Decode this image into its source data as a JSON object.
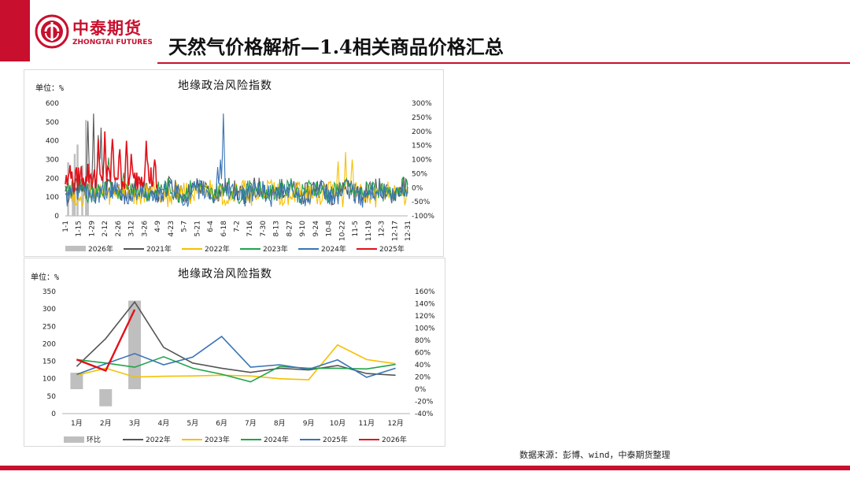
{
  "header": {
    "logo_cn": "中泰期货",
    "logo_en": "ZHONGTAI FUTURES",
    "title": "天然气价格解析—1.4相关商品价格汇总"
  },
  "footer": {
    "source": "数据来源：彭博、wind，中泰期货整理"
  },
  "colors": {
    "brand": "#c8102e",
    "gray": "#bfbfbf",
    "dark": "#555555",
    "yellow": "#f5c000",
    "green": "#1fa44a",
    "blue": "#3a74b6",
    "red": "#e3101a"
  },
  "chart_data": [
    {
      "type": "line",
      "title": "地缘政治风险指数",
      "unit": "单位：%",
      "ylim": [
        0,
        600
      ],
      "yticks": [
        0,
        100,
        200,
        300,
        400,
        500,
        600
      ],
      "y2lim": [
        -100,
        300
      ],
      "y2ticks": [
        "-100%",
        "-50%",
        "0%",
        "50%",
        "100%",
        "150%",
        "200%",
        "250%",
        "300%"
      ],
      "xticks": [
        "1-1",
        "1-15",
        "1-29",
        "2-12",
        "2-26",
        "3-12",
        "3-26",
        "4-9",
        "4-23",
        "5-7",
        "5-21",
        "6-4",
        "6-18",
        "7-2",
        "7-16",
        "7-30",
        "8-13",
        "8-27",
        "9-10",
        "9-24",
        "10-8",
        "10-22",
        "11-5",
        "11-19",
        "12-3",
        "12-17",
        "12-31"
      ],
      "series": [
        {
          "name": "2026年",
          "kind": "bar",
          "color": "#bfbfbf",
          "points": [
            [
              3,
              285
            ],
            [
              8,
              190
            ],
            [
              10,
              330
            ],
            [
              13,
              380
            ],
            [
              18,
              270
            ],
            [
              22,
              510
            ],
            [
              24,
              150
            ]
          ]
        },
        {
          "name": "2021年",
          "kind": "line",
          "color": "#555555",
          "peaks": [
            [
              24,
              505
            ],
            [
              30,
              545
            ],
            [
              35,
              430
            ],
            [
              38,
              470
            ],
            [
              42,
              415
            ]
          ]
        },
        {
          "name": "2022年",
          "kind": "line",
          "color": "#f5c000",
          "peaks": [
            [
              290,
              290
            ],
            [
              298,
              340
            ],
            [
              305,
              300
            ],
            [
              240,
              100
            ]
          ]
        },
        {
          "name": "2023年",
          "kind": "line",
          "color": "#1fa44a",
          "peaks": [
            [
              46,
              310
            ],
            [
              62,
              230
            ],
            [
              240,
              200
            ]
          ]
        },
        {
          "name": "2024年",
          "kind": "line",
          "color": "#3a74b6",
          "peaks": [
            [
              168,
              545
            ],
            [
              165,
              300
            ],
            [
              162,
              260
            ]
          ]
        },
        {
          "name": "2025年",
          "kind": "line",
          "color": "#e3101a",
          "peaks": [
            [
              5,
              270
            ],
            [
              21,
              160
            ],
            [
              35,
              410
            ],
            [
              42,
              450
            ],
            [
              50,
              410
            ],
            [
              58,
              355
            ],
            [
              65,
              400
            ],
            [
              70,
              330
            ],
            [
              86,
              400
            ],
            [
              95,
              300
            ]
          ]
        }
      ]
    },
    {
      "type": "line",
      "title": "地缘政治风险指数",
      "unit": "单位：%",
      "categories": [
        "1月",
        "2月",
        "3月",
        "4月",
        "5月",
        "6月",
        "7月",
        "8月",
        "9月",
        "10月",
        "11月",
        "12月"
      ],
      "ylim": [
        0,
        350
      ],
      "yticks": [
        0,
        50,
        100,
        150,
        200,
        250,
        300,
        350
      ],
      "y2lim": [
        -40,
        160
      ],
      "y2ticks": [
        "-40%",
        "-20%",
        "0%",
        "20%",
        "40%",
        "60%",
        "80%",
        "100%",
        "120%",
        "140%",
        "160%"
      ],
      "series": [
        {
          "name": "环比",
          "kind": "bar",
          "axis": "right",
          "color": "#bfbfbf",
          "values": [
            27,
            -28,
            145,
            null,
            null,
            null,
            null,
            null,
            null,
            null,
            null,
            null
          ]
        },
        {
          "name": "2022年",
          "color": "#555555",
          "values": [
            135,
            215,
            320,
            190,
            145,
            130,
            118,
            130,
            125,
            138,
            115,
            110
          ]
        },
        {
          "name": "2023年",
          "color": "#f5c000",
          "values": [
            110,
            130,
            105,
            107,
            108,
            110,
            108,
            100,
            97,
            197,
            155,
            143
          ]
        },
        {
          "name": "2024年",
          "color": "#1fa44a",
          "values": [
            155,
            145,
            133,
            163,
            130,
            113,
            91,
            135,
            130,
            130,
            128,
            141
          ]
        },
        {
          "name": "2025年",
          "color": "#3a74b6",
          "values": [
            112,
            143,
            172,
            140,
            162,
            221,
            133,
            140,
            127,
            154,
            104,
            130
          ]
        },
        {
          "name": "2026年",
          "color": "#e3101a",
          "values": [
            155,
            123,
            298,
            null,
            null,
            null,
            null,
            null,
            null,
            null,
            null,
            null
          ]
        }
      ]
    }
  ]
}
